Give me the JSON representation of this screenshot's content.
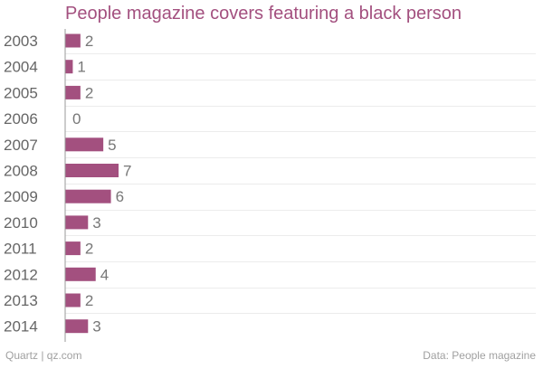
{
  "chart_data": {
    "type": "bar",
    "orientation": "horizontal",
    "title": "People magazine covers featuring a black person",
    "categories": [
      "2003",
      "2004",
      "2005",
      "2006",
      "2007",
      "2008",
      "2009",
      "2010",
      "2011",
      "2012",
      "2013",
      "2014"
    ],
    "values": [
      2,
      1,
      2,
      0,
      5,
      7,
      6,
      3,
      2,
      4,
      2,
      3
    ],
    "xlim": [
      0,
      7
    ],
    "grid": true,
    "bar_color": "#a3507f"
  },
  "footer": {
    "credit": "Quartz | qz.com",
    "source": "Data: People magazine"
  }
}
